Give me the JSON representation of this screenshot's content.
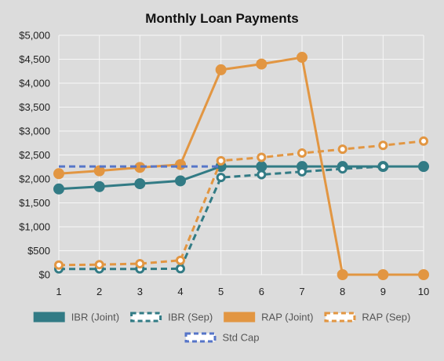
{
  "chart_data": {
    "type": "line",
    "title": "Monthly Loan Payments",
    "xlabel": "",
    "ylabel": "",
    "x": [
      1,
      2,
      3,
      4,
      5,
      6,
      7,
      8,
      9,
      10
    ],
    "x_tick_labels": [
      "1",
      "2",
      "3",
      "4",
      "5",
      "6",
      "7",
      "8",
      "9",
      "10"
    ],
    "ylim": [
      0,
      5000
    ],
    "y_ticks": [
      0,
      500,
      1000,
      1500,
      2000,
      2500,
      3000,
      3500,
      4000,
      4500,
      5000
    ],
    "y_tick_labels": [
      "$0",
      "$500",
      "$1,000",
      "$1,500",
      "$2,000",
      "$2,500",
      "$3,000",
      "$3,500",
      "$4,000",
      "$4,500",
      "$5,000"
    ],
    "grid": true,
    "legend_position": "bottom",
    "series": [
      {
        "name": "IBR (Joint)",
        "color": "#327b85",
        "dashed": false,
        "filled_markers": true,
        "values": [
          1790,
          1840,
          1900,
          1960,
          2260,
          2260,
          2260,
          2260,
          2260,
          2260
        ]
      },
      {
        "name": "IBR (Sep)",
        "color": "#327b85",
        "dashed": true,
        "filled_markers": false,
        "values": [
          120,
          120,
          120,
          125,
          2030,
          2090,
          2150,
          2210,
          2260,
          null
        ]
      },
      {
        "name": "RAP (Joint)",
        "color": "#e29642",
        "dashed": false,
        "filled_markers": true,
        "values": [
          2110,
          2170,
          2240,
          2300,
          4280,
          4400,
          4540,
          0,
          0,
          0
        ]
      },
      {
        "name": "RAP (Sep)",
        "color": "#e29642",
        "dashed": true,
        "filled_markers": false,
        "values": [
          200,
          210,
          230,
          300,
          2380,
          2450,
          2540,
          2620,
          2700,
          2790
        ]
      },
      {
        "name": "Std Cap",
        "color": "#5675c8",
        "dashed": true,
        "filled_markers": false,
        "no_markers": true,
        "values": [
          2260,
          2260,
          2260,
          2260,
          2260,
          null,
          null,
          null,
          null,
          null
        ]
      }
    ]
  }
}
